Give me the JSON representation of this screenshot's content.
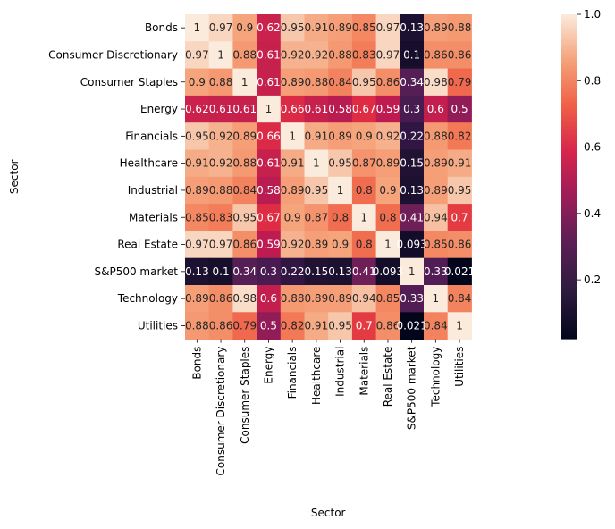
{
  "chart_data": {
    "type": "heatmap",
    "title": "",
    "xlabel": "Sector",
    "ylabel": "Sector",
    "categories": [
      "Bonds",
      "Consumer Discretionary",
      "Consumer Staples",
      "Energy",
      "Financials",
      "Healthcare",
      "Industrial",
      "Materials",
      "Real Estate",
      "S&P500 market",
      "Technology",
      "Utilities"
    ],
    "values": [
      [
        1,
        0.97,
        0.9,
        0.62,
        0.95,
        0.91,
        0.89,
        0.85,
        0.97,
        0.13,
        0.89,
        0.88
      ],
      [
        0.97,
        1,
        0.88,
        0.61,
        0.92,
        0.92,
        0.88,
        0.83,
        0.97,
        0.1,
        0.86,
        0.86
      ],
      [
        0.9,
        0.88,
        1,
        0.61,
        0.89,
        0.88,
        0.84,
        0.95,
        0.86,
        0.34,
        0.98,
        0.79
      ],
      [
        0.62,
        0.61,
        0.61,
        1,
        0.66,
        0.61,
        0.58,
        0.67,
        0.59,
        0.3,
        0.6,
        0.5
      ],
      [
        0.95,
        0.92,
        0.89,
        0.66,
        1,
        0.91,
        0.89,
        0.9,
        0.92,
        0.22,
        0.88,
        0.82
      ],
      [
        0.91,
        0.92,
        0.88,
        0.61,
        0.91,
        1,
        0.95,
        0.87,
        0.89,
        0.15,
        0.89,
        0.91
      ],
      [
        0.89,
        0.88,
        0.84,
        0.58,
        0.89,
        0.95,
        1,
        0.8,
        0.9,
        0.13,
        0.89,
        0.95
      ],
      [
        0.85,
        0.83,
        0.95,
        0.67,
        0.9,
        0.87,
        0.8,
        1,
        0.8,
        0.41,
        0.94,
        0.7
      ],
      [
        0.97,
        0.97,
        0.86,
        0.59,
        0.92,
        0.89,
        0.9,
        0.8,
        1,
        0.093,
        0.85,
        0.86
      ],
      [
        0.13,
        0.1,
        0.34,
        0.3,
        0.22,
        0.15,
        0.13,
        0.41,
        0.093,
        1,
        0.33,
        0.021
      ],
      [
        0.89,
        0.86,
        0.98,
        0.6,
        0.88,
        0.89,
        0.89,
        0.94,
        0.85,
        0.33,
        1,
        0.84
      ],
      [
        0.88,
        0.86,
        0.79,
        0.5,
        0.82,
        0.91,
        0.95,
        0.7,
        0.86,
        0.021,
        0.84,
        1
      ]
    ],
    "colormap": "rocket",
    "vmin": 0.021,
    "vmax": 1,
    "colorbar_ticks": [
      0.2,
      0.4,
      0.6,
      0.8,
      1.0
    ],
    "colorbar_tick_labels": [
      "0.2",
      "0.4",
      "0.6",
      "0.8",
      "1.0"
    ],
    "annotated": true,
    "grid": false,
    "legend": "colorbar-right"
  }
}
